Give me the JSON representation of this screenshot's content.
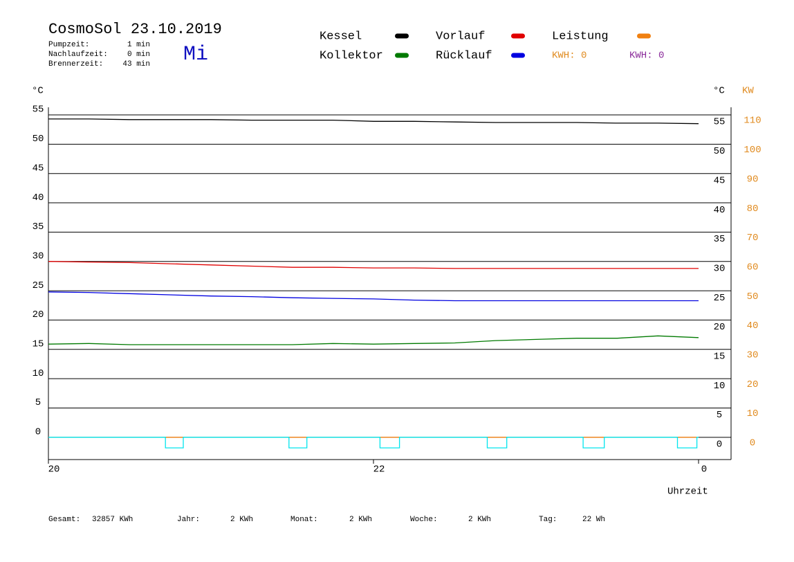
{
  "chart_data": {
    "type": "line",
    "title": "CosmoSol 23.10.2019",
    "day": "Mi",
    "stats": [
      {
        "label": "Pumpzeit:",
        "value": "1 min"
      },
      {
        "label": "Nachlaufzeit:",
        "value": "0 min"
      },
      {
        "label": "Brennerzeit:",
        "value": "43 min"
      }
    ],
    "kwh_labels": [
      {
        "text": "KWH: 0",
        "color": "#e08a1e"
      },
      {
        "text": "KWH: 0",
        "color": "#8a2a9a"
      }
    ],
    "y_unit": "°C",
    "y_unit_right": "°C",
    "y2_unit": "KW",
    "xlabel": "Uhrzeit",
    "totals": [
      {
        "label": "Gesamt:",
        "value": "32857 KWh"
      },
      {
        "label": "Jahr:",
        "value": "2 KWh"
      },
      {
        "label": "Monat:",
        "value": "2 KWh"
      },
      {
        "label": "Woche:",
        "value": "2 KWh"
      },
      {
        "label": "Tag:",
        "value": "22 Wh"
      }
    ],
    "x": [
      20,
      20.25,
      20.5,
      20.75,
      21,
      21.25,
      21.5,
      21.75,
      22,
      22.25,
      22.5,
      22.75,
      23,
      23.25,
      23.5,
      23.75,
      24
    ],
    "xlim": [
      20,
      24.2
    ],
    "xticks": [
      20,
      22,
      {
        "value": 24,
        "label": "0"
      }
    ],
    "ylim": [
      -3.8,
      56.3
    ],
    "yticks": [
      0,
      5,
      10,
      15,
      20,
      25,
      30,
      35,
      40,
      45,
      50,
      55
    ],
    "y2lim": [
      -7.6,
      112.6
    ],
    "y2ticks": [
      0,
      10,
      20,
      30,
      40,
      50,
      60,
      70,
      80,
      90,
      100,
      110
    ],
    "grid": true,
    "series": [
      {
        "name": "Kessel",
        "color": "#000000",
        "values": [
          54.3,
          54.3,
          54.2,
          54.2,
          54.2,
          54.1,
          54.1,
          54.1,
          53.9,
          53.9,
          53.8,
          53.7,
          53.7,
          53.7,
          53.6,
          53.6,
          53.5
        ]
      },
      {
        "name": "Kollektor",
        "color": "#007a00",
        "values": [
          15.9,
          16.0,
          15.8,
          15.8,
          15.8,
          15.8,
          15.8,
          16.0,
          15.9,
          16.0,
          16.1,
          16.5,
          16.7,
          16.9,
          16.9,
          17.3,
          17.0
        ]
      },
      {
        "name": "Vorlauf",
        "color": "#e00000",
        "values": [
          30.0,
          29.9,
          29.8,
          29.6,
          29.4,
          29.2,
          29.0,
          29.0,
          28.9,
          28.9,
          28.8,
          28.8,
          28.8,
          28.8,
          28.8,
          28.8,
          28.8
        ]
      },
      {
        "name": "Rücklauf",
        "color": "#0000e0",
        "values": [
          24.8,
          24.7,
          24.5,
          24.3,
          24.1,
          24.0,
          23.8,
          23.7,
          23.6,
          23.4,
          23.3,
          23.3,
          23.3,
          23.3,
          23.3,
          23.3,
          23.3
        ]
      },
      {
        "name": "Leistung",
        "color": "#f08010",
        "axis": "y2",
        "values": [
          0,
          0,
          0,
          0,
          0,
          0,
          0,
          0,
          0,
          0,
          0,
          0,
          0,
          0,
          0,
          0,
          0
        ]
      }
    ],
    "pump": {
      "color": "#00e5ee",
      "x": [
        20,
        20.72,
        20.72,
        20.83,
        20.83,
        21.48,
        21.48,
        21.59,
        21.59,
        22.04,
        22.04,
        22.16,
        22.16,
        22.7,
        22.7,
        22.82,
        22.82,
        23.29,
        23.29,
        23.42,
        23.42,
        23.87,
        23.87,
        23.99,
        23.99,
        24
      ],
      "values": [
        0,
        0,
        -1.8,
        -1.8,
        0,
        0,
        -1.8,
        -1.8,
        0,
        0,
        -1.8,
        -1.8,
        0,
        0,
        -1.8,
        -1.8,
        0,
        0,
        -1.8,
        -1.8,
        0,
        0,
        -1.8,
        -1.8,
        0,
        0
      ]
    }
  }
}
